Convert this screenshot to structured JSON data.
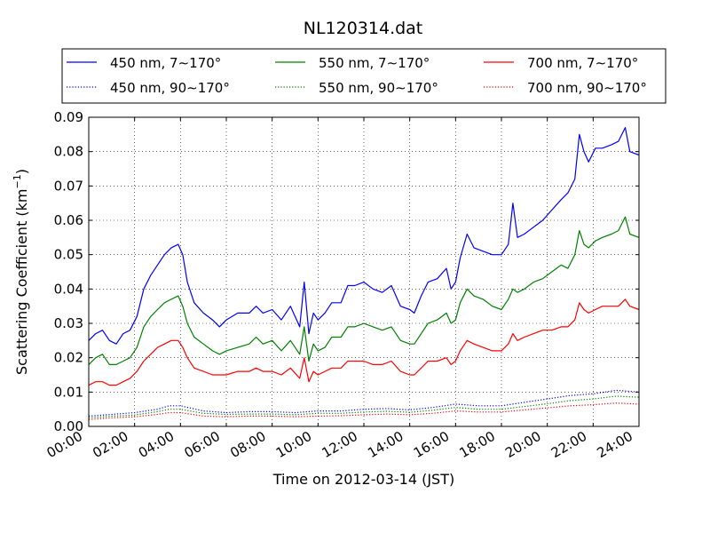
{
  "chart_data": {
    "type": "line",
    "title": "NL120314.dat",
    "xlabel": "Time on 2012-03-14 (JST)",
    "ylabel_main": "Scattering Coefficient (km",
    "ylabel_sup": "−1",
    "ylabel_tail": ")",
    "x_unit": "hours",
    "xlim": [
      0,
      24
    ],
    "ylim": [
      0,
      0.09
    ],
    "grid": true,
    "legend_position": "top",
    "x_ticks": [
      {
        "v": 0,
        "label": "00:00"
      },
      {
        "v": 2,
        "label": "02:00"
      },
      {
        "v": 4,
        "label": "04:00"
      },
      {
        "v": 6,
        "label": "06:00"
      },
      {
        "v": 8,
        "label": "08:00"
      },
      {
        "v": 10,
        "label": "10:00"
      },
      {
        "v": 12,
        "label": "12:00"
      },
      {
        "v": 14,
        "label": "14:00"
      },
      {
        "v": 16,
        "label": "16:00"
      },
      {
        "v": 18,
        "label": "18:00"
      },
      {
        "v": 20,
        "label": "20:00"
      },
      {
        "v": 22,
        "label": "22:00"
      },
      {
        "v": 24,
        "label": "24:00"
      }
    ],
    "y_ticks": [
      {
        "v": 0,
        "label": "0.00"
      },
      {
        "v": 0.01,
        "label": "0.01"
      },
      {
        "v": 0.02,
        "label": "0.02"
      },
      {
        "v": 0.03,
        "label": "0.03"
      },
      {
        "v": 0.04,
        "label": "0.04"
      },
      {
        "v": 0.05,
        "label": "0.05"
      },
      {
        "v": 0.06,
        "label": "0.06"
      },
      {
        "v": 0.07,
        "label": "0.07"
      },
      {
        "v": 0.08,
        "label": "0.08"
      },
      {
        "v": 0.09,
        "label": "0.09"
      }
    ],
    "series": [
      {
        "name": "450 nm, 7∼170°",
        "color": "#0000ff",
        "style": "solid",
        "x": [
          0,
          0.3,
          0.6,
          0.9,
          1.2,
          1.5,
          1.8,
          2.1,
          2.4,
          2.7,
          3.0,
          3.3,
          3.6,
          3.9,
          4.1,
          4.3,
          4.6,
          5.0,
          5.4,
          5.7,
          6.0,
          6.5,
          7.0,
          7.3,
          7.6,
          8.0,
          8.4,
          8.8,
          9.2,
          9.4,
          9.6,
          9.8,
          10.0,
          10.3,
          10.6,
          11.0,
          11.3,
          11.6,
          12.0,
          12.4,
          12.8,
          13.2,
          13.6,
          14.0,
          14.2,
          14.5,
          14.8,
          15.2,
          15.6,
          15.8,
          16.0,
          16.2,
          16.5,
          16.8,
          17.2,
          17.6,
          18.0,
          18.3,
          18.5,
          18.7,
          19.0,
          19.4,
          19.8,
          20.2,
          20.6,
          20.9,
          21.2,
          21.4,
          21.6,
          21.8,
          22.1,
          22.4,
          22.8,
          23.1,
          23.4,
          23.6,
          24.0
        ],
        "y": [
          0.025,
          0.027,
          0.028,
          0.025,
          0.024,
          0.027,
          0.028,
          0.032,
          0.04,
          0.044,
          0.047,
          0.05,
          0.052,
          0.053,
          0.05,
          0.042,
          0.036,
          0.033,
          0.031,
          0.029,
          0.031,
          0.033,
          0.033,
          0.035,
          0.033,
          0.034,
          0.031,
          0.035,
          0.029,
          0.042,
          0.027,
          0.033,
          0.031,
          0.033,
          0.036,
          0.036,
          0.041,
          0.041,
          0.042,
          0.04,
          0.039,
          0.041,
          0.035,
          0.034,
          0.033,
          0.038,
          0.042,
          0.043,
          0.046,
          0.04,
          0.042,
          0.049,
          0.056,
          0.052,
          0.051,
          0.05,
          0.05,
          0.053,
          0.065,
          0.055,
          0.056,
          0.058,
          0.06,
          0.063,
          0.066,
          0.068,
          0.072,
          0.085,
          0.08,
          0.077,
          0.081,
          0.081,
          0.082,
          0.083,
          0.087,
          0.08,
          0.079
        ]
      },
      {
        "name": "550 nm, 7∼170°",
        "color": "#008000",
        "style": "solid",
        "x": [
          0,
          0.3,
          0.6,
          0.9,
          1.2,
          1.5,
          1.8,
          2.1,
          2.4,
          2.7,
          3.0,
          3.3,
          3.6,
          3.9,
          4.1,
          4.3,
          4.6,
          5.0,
          5.4,
          5.7,
          6.0,
          6.5,
          7.0,
          7.3,
          7.6,
          8.0,
          8.4,
          8.8,
          9.2,
          9.4,
          9.6,
          9.8,
          10.0,
          10.3,
          10.6,
          11.0,
          11.3,
          11.6,
          12.0,
          12.4,
          12.8,
          13.2,
          13.6,
          14.0,
          14.2,
          14.5,
          14.8,
          15.2,
          15.6,
          15.8,
          16.0,
          16.2,
          16.5,
          16.8,
          17.2,
          17.6,
          18.0,
          18.3,
          18.5,
          18.7,
          19.0,
          19.4,
          19.8,
          20.2,
          20.6,
          20.9,
          21.2,
          21.4,
          21.6,
          21.8,
          22.1,
          22.4,
          22.8,
          23.1,
          23.4,
          23.6,
          24.0
        ],
        "y": [
          0.018,
          0.02,
          0.021,
          0.018,
          0.018,
          0.019,
          0.02,
          0.023,
          0.029,
          0.032,
          0.034,
          0.036,
          0.037,
          0.038,
          0.035,
          0.03,
          0.026,
          0.024,
          0.022,
          0.021,
          0.022,
          0.023,
          0.024,
          0.026,
          0.024,
          0.025,
          0.022,
          0.025,
          0.021,
          0.029,
          0.019,
          0.024,
          0.022,
          0.023,
          0.026,
          0.026,
          0.029,
          0.029,
          0.03,
          0.029,
          0.028,
          0.029,
          0.025,
          0.024,
          0.024,
          0.027,
          0.03,
          0.031,
          0.033,
          0.03,
          0.031,
          0.036,
          0.04,
          0.038,
          0.037,
          0.035,
          0.034,
          0.037,
          0.04,
          0.039,
          0.04,
          0.042,
          0.043,
          0.045,
          0.047,
          0.046,
          0.05,
          0.057,
          0.053,
          0.052,
          0.054,
          0.055,
          0.056,
          0.057,
          0.061,
          0.056,
          0.055
        ]
      },
      {
        "name": "700 nm, 7∼170°",
        "color": "#ff0000",
        "style": "solid",
        "x": [
          0,
          0.3,
          0.6,
          0.9,
          1.2,
          1.5,
          1.8,
          2.1,
          2.4,
          2.7,
          3.0,
          3.3,
          3.6,
          3.9,
          4.1,
          4.3,
          4.6,
          5.0,
          5.4,
          5.7,
          6.0,
          6.5,
          7.0,
          7.3,
          7.6,
          8.0,
          8.4,
          8.8,
          9.2,
          9.4,
          9.6,
          9.8,
          10.0,
          10.3,
          10.6,
          11.0,
          11.3,
          11.6,
          12.0,
          12.4,
          12.8,
          13.2,
          13.6,
          14.0,
          14.2,
          14.5,
          14.8,
          15.2,
          15.6,
          15.8,
          16.0,
          16.2,
          16.5,
          16.8,
          17.2,
          17.6,
          18.0,
          18.3,
          18.5,
          18.7,
          19.0,
          19.4,
          19.8,
          20.2,
          20.6,
          20.9,
          21.2,
          21.4,
          21.6,
          21.8,
          22.1,
          22.4,
          22.8,
          23.1,
          23.4,
          23.6,
          24.0
        ],
        "y": [
          0.012,
          0.013,
          0.013,
          0.012,
          0.012,
          0.013,
          0.014,
          0.016,
          0.019,
          0.021,
          0.023,
          0.024,
          0.025,
          0.025,
          0.023,
          0.02,
          0.017,
          0.016,
          0.015,
          0.015,
          0.015,
          0.016,
          0.016,
          0.017,
          0.016,
          0.016,
          0.015,
          0.017,
          0.014,
          0.02,
          0.013,
          0.016,
          0.015,
          0.016,
          0.017,
          0.017,
          0.019,
          0.019,
          0.019,
          0.018,
          0.018,
          0.019,
          0.016,
          0.015,
          0.015,
          0.017,
          0.019,
          0.019,
          0.02,
          0.018,
          0.019,
          0.022,
          0.025,
          0.024,
          0.023,
          0.022,
          0.022,
          0.024,
          0.027,
          0.025,
          0.026,
          0.027,
          0.028,
          0.028,
          0.029,
          0.029,
          0.031,
          0.036,
          0.034,
          0.033,
          0.034,
          0.035,
          0.035,
          0.035,
          0.037,
          0.035,
          0.034
        ]
      },
      {
        "name": "450 nm, 90∼170°",
        "color": "#0000ff",
        "style": "dotted",
        "x": [
          0,
          1,
          2,
          3,
          3.5,
          4,
          5,
          6,
          7,
          8,
          9,
          10,
          11,
          12,
          13,
          14,
          15,
          16,
          17,
          18,
          19,
          20,
          21,
          22,
          23,
          24
        ],
        "y": [
          0.003,
          0.0035,
          0.004,
          0.005,
          0.006,
          0.006,
          0.0045,
          0.004,
          0.0043,
          0.0043,
          0.004,
          0.0045,
          0.0045,
          0.005,
          0.0052,
          0.0048,
          0.0055,
          0.0065,
          0.006,
          0.006,
          0.007,
          0.008,
          0.009,
          0.0095,
          0.0105,
          0.01
        ]
      },
      {
        "name": "550 nm, 90∼170°",
        "color": "#008000",
        "style": "dotted",
        "x": [
          0,
          1,
          2,
          3,
          3.5,
          4,
          5,
          6,
          7,
          8,
          9,
          10,
          11,
          12,
          13,
          14,
          15,
          16,
          17,
          18,
          19,
          20,
          21,
          22,
          23,
          24
        ],
        "y": [
          0.0025,
          0.003,
          0.0033,
          0.0043,
          0.005,
          0.005,
          0.0038,
          0.0035,
          0.0036,
          0.0036,
          0.0034,
          0.0038,
          0.0038,
          0.0042,
          0.0044,
          0.0041,
          0.0047,
          0.0055,
          0.005,
          0.005,
          0.0058,
          0.0066,
          0.0075,
          0.008,
          0.0088,
          0.0085
        ]
      },
      {
        "name": "700 nm, 90∼170°",
        "color": "#ff0000",
        "style": "dotted",
        "x": [
          0,
          1,
          2,
          3,
          3.5,
          4,
          5,
          6,
          7,
          8,
          9,
          10,
          11,
          12,
          13,
          14,
          15,
          16,
          17,
          18,
          19,
          20,
          21,
          22,
          23,
          24
        ],
        "y": [
          0.002,
          0.0025,
          0.0028,
          0.0035,
          0.004,
          0.004,
          0.003,
          0.0028,
          0.003,
          0.003,
          0.0028,
          0.003,
          0.0031,
          0.0034,
          0.0036,
          0.0034,
          0.0038,
          0.0045,
          0.0042,
          0.0042,
          0.0048,
          0.0054,
          0.006,
          0.0063,
          0.0068,
          0.0065
        ]
      }
    ]
  }
}
